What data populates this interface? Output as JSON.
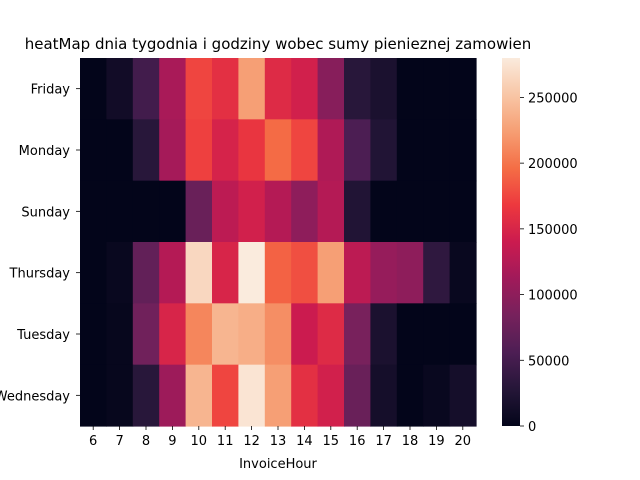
{
  "chart_data": {
    "type": "heatmap",
    "title": "heatMap dnia tygodnia i godziny wobec sumy pienieznej zamowien",
    "xlabel": "InvoiceHour",
    "ylabel": "",
    "x": [
      "6",
      "7",
      "8",
      "9",
      "10",
      "11",
      "12",
      "13",
      "14",
      "15",
      "16",
      "17",
      "18",
      "19",
      "20"
    ],
    "y": [
      "Friday",
      "Monday",
      "Sunday",
      "Thursday",
      "Tuesday",
      "Wednesday"
    ],
    "values": [
      [
        0,
        12000,
        48000,
        118000,
        175000,
        160000,
        225000,
        155000,
        145000,
        95000,
        30000,
        20000,
        0,
        0,
        0
      ],
      [
        0,
        0,
        30000,
        115000,
        172000,
        148000,
        165000,
        195000,
        175000,
        122000,
        55000,
        25000,
        0,
        0,
        0
      ],
      [
        0,
        0,
        0,
        0,
        75000,
        130000,
        145000,
        125000,
        100000,
        125000,
        25000,
        0,
        0,
        0,
        0
      ],
      [
        0,
        5000,
        70000,
        125000,
        265000,
        150000,
        280000,
        190000,
        180000,
        225000,
        130000,
        105000,
        100000,
        35000,
        5000
      ],
      [
        0,
        3000,
        80000,
        150000,
        210000,
        240000,
        235000,
        215000,
        140000,
        155000,
        85000,
        20000,
        0,
        0,
        0
      ],
      [
        0,
        3000,
        30000,
        110000,
        240000,
        175000,
        275000,
        225000,
        160000,
        145000,
        75000,
        15000,
        0,
        5000,
        15000
      ]
    ],
    "zlim": [
      0,
      280000
    ],
    "colorbar_ticks": [
      "0",
      "50000",
      "100000",
      "150000",
      "200000",
      "250000"
    ],
    "colorbar_tick_values": [
      0,
      50000,
      100000,
      150000,
      200000,
      250000
    ],
    "colormap": "rocket",
    "grid": false,
    "legend": "colorbar-right"
  }
}
